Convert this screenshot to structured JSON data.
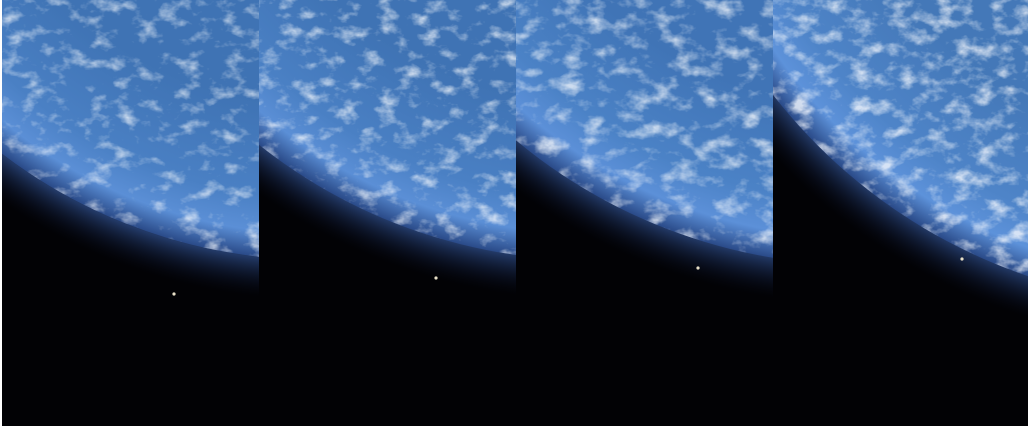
{
  "image": {
    "panel_count": 4,
    "subject": "earth-limb-sequence",
    "colors": {
      "space": "#020205",
      "ocean_deep": "#2f5f9e",
      "ocean_mid": "#4c7fc0",
      "limb_glow": "#5a8fe0",
      "cloud": "#dfe8f4",
      "point_of_light": "#e8e0c8",
      "separator": "#ffffff"
    }
  }
}
